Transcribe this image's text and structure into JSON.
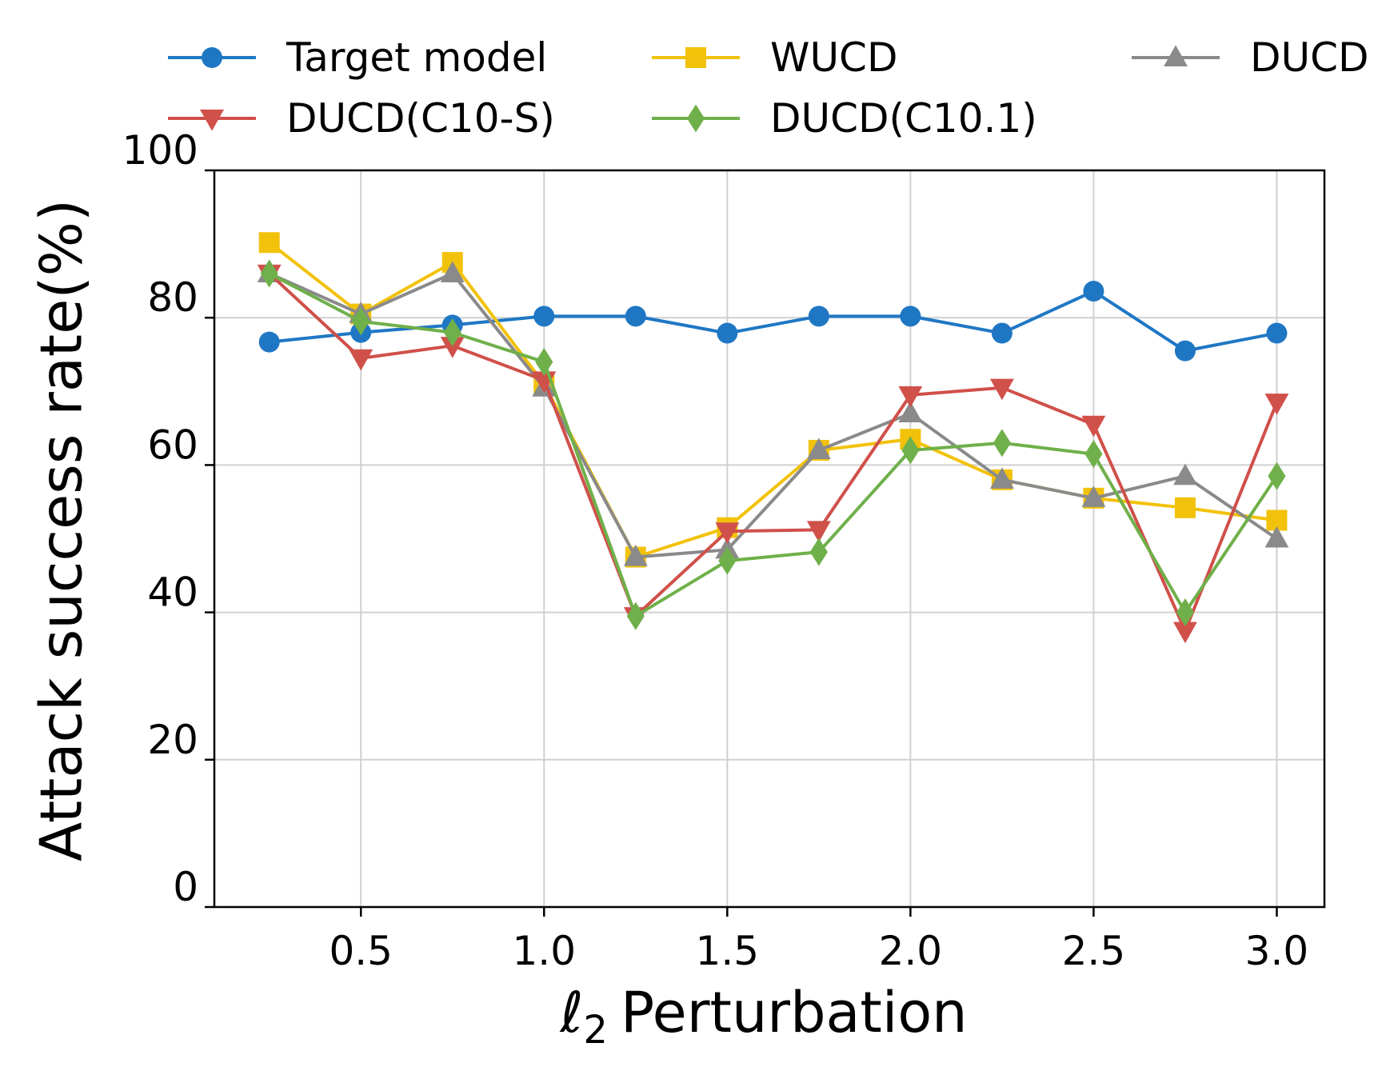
{
  "chart_data": {
    "type": "line",
    "xlabel_prefix": "ℓ",
    "xlabel_sub": "2",
    "xlabel_rest": "Perturbation",
    "ylabel": "Attack success rate(%)",
    "xlim": [
      0.1,
      3.13
    ],
    "ylim": [
      0,
      100
    ],
    "xticks": [
      0.5,
      1.0,
      1.5,
      2.0,
      2.5,
      3.0
    ],
    "xtick_labels": [
      "0.5",
      "1.0",
      "1.5",
      "2.0",
      "2.5",
      "3.0"
    ],
    "yticks": [
      0,
      20,
      40,
      60,
      80,
      100
    ],
    "ytick_labels": [
      "0",
      "20",
      "40",
      "60",
      "80",
      "100"
    ],
    "grid": true,
    "legend_position": "top",
    "x": [
      0.25,
      0.5,
      0.75,
      1.0,
      1.25,
      1.5,
      1.75,
      2.0,
      2.25,
      2.5,
      2.75,
      3.0
    ],
    "series": [
      {
        "name": "Target model",
        "color": "#1f77c4",
        "marker": "circle",
        "values": [
          76.7,
          78.0,
          79.0,
          80.2,
          80.2,
          77.9,
          80.2,
          80.2,
          77.9,
          83.6,
          75.5,
          77.9
        ]
      },
      {
        "name": "WUCD",
        "color": "#f2c20a",
        "marker": "square",
        "values": [
          90.2,
          80.5,
          87.5,
          71.0,
          47.5,
          51.5,
          62.0,
          63.5,
          58.0,
          55.5,
          54.2,
          52.5
        ]
      },
      {
        "name": "DUCD",
        "color": "#8a8a8a",
        "marker": "triangle-up",
        "values": [
          86.0,
          80.5,
          86.0,
          70.5,
          47.5,
          48.5,
          62.0,
          67.0,
          58.0,
          55.5,
          58.5,
          50.0
        ]
      },
      {
        "name": "DUCD(C10-S)",
        "color": "#d0504a",
        "marker": "triangle-down",
        "values": [
          86.0,
          74.5,
          76.2,
          71.5,
          39.5,
          51.0,
          51.2,
          69.5,
          70.5,
          65.5,
          37.5,
          68.5
        ]
      },
      {
        "name": "DUCD(C10.1)",
        "color": "#6fb04a",
        "marker": "diamond",
        "values": [
          86.0,
          79.5,
          78.0,
          74.0,
          39.5,
          47.0,
          48.2,
          62.0,
          63.0,
          61.5,
          40.0,
          58.5
        ]
      }
    ]
  },
  "legend": {
    "items": [
      "Target model",
      "WUCD",
      "DUCD",
      "DUCD(C10-S)",
      "DUCD(C10.1)"
    ]
  }
}
